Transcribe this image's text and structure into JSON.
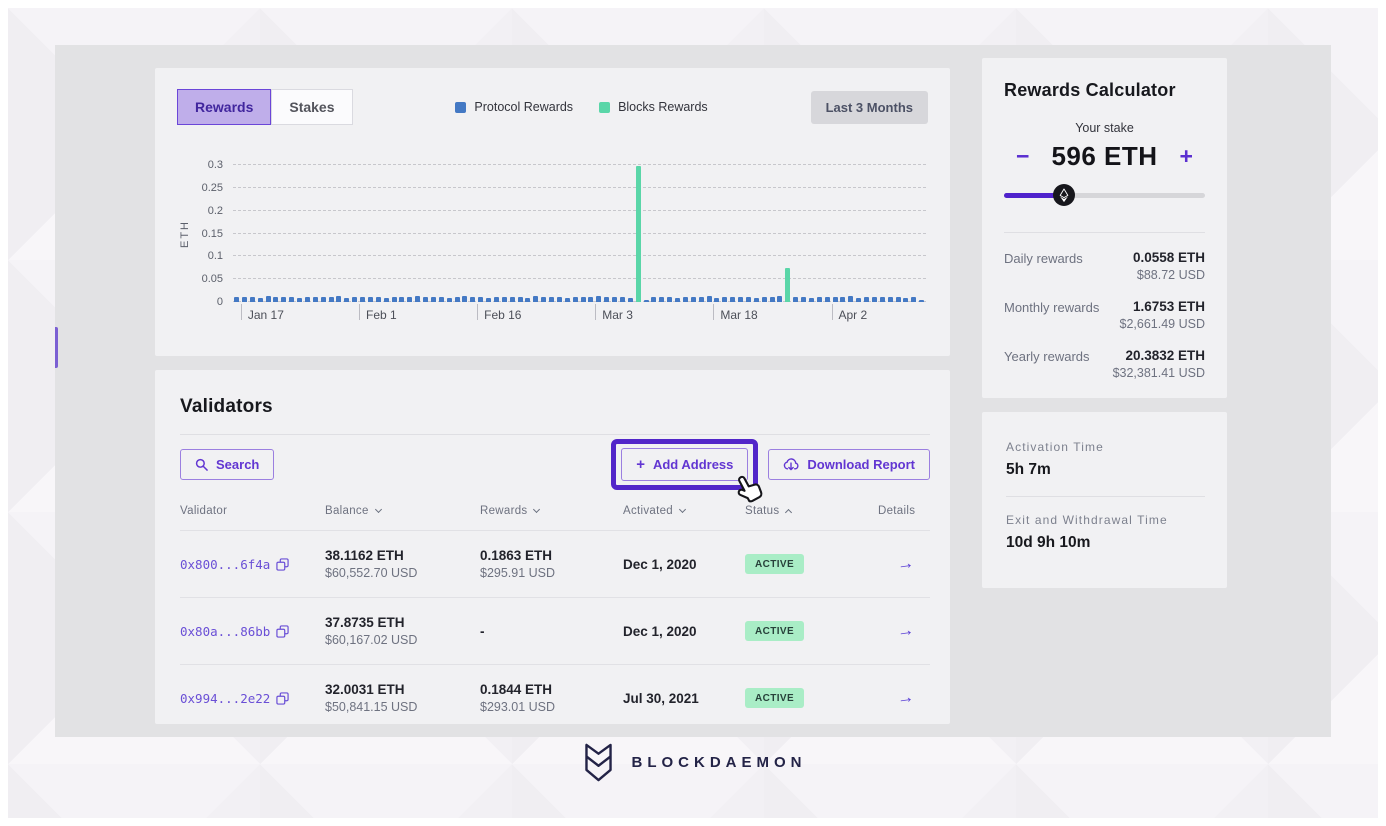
{
  "accent": {
    "purple": "#5b2fd0",
    "purple_light_bg": "#bfaeea",
    "blue": "#4479c4",
    "green": "#5ad6a8",
    "badge_bg": "#a9edc6",
    "canvas": "#e2e2e4",
    "card": "#f1f1f3"
  },
  "chart_panel": {
    "tabs": [
      {
        "label": "Rewards",
        "selected": true
      },
      {
        "label": "Stakes",
        "selected": false
      }
    ],
    "legend": [
      {
        "label": "Protocol Rewards",
        "color": "#4479c4"
      },
      {
        "label": "Blocks Rewards",
        "color": "#5ad6a8"
      }
    ],
    "period_button": "Last 3 Months"
  },
  "chart_data": {
    "type": "bar",
    "ylabel": "ETH",
    "ylim": [
      0,
      0.3
    ],
    "yticks": [
      0,
      0.05,
      0.1,
      0.15,
      0.2,
      0.25,
      0.3
    ],
    "ytick_labels": [
      "0",
      "0.05",
      "0.1",
      "0.15",
      "0.2",
      "0.25",
      "0.3"
    ],
    "grid": "dashed horizontal",
    "legend_position": "top center",
    "xticks": [
      "Jan 17",
      "Feb 1",
      "Feb 16",
      "Mar 3",
      "Mar 18",
      "Apr 2"
    ],
    "xtick_indices": [
      1,
      16,
      31,
      46,
      61,
      76
    ],
    "n_points": 88,
    "series": [
      {
        "name": "Protocol Rewards",
        "color": "#4479c4",
        "values": [
          0.01,
          0.012,
          0.011,
          0.009,
          0.013,
          0.01,
          0.011,
          0.012,
          0.009,
          0.011,
          0.01,
          0.012,
          0.011,
          0.013,
          0.009,
          0.01,
          0.012,
          0.01,
          0.011,
          0.009,
          0.012,
          0.011,
          0.01,
          0.013,
          0.01,
          0.011,
          0.012,
          0.009,
          0.011,
          0.013,
          0.01,
          0.012,
          0.009,
          0.011,
          0.01,
          0.012,
          0.011,
          0.009,
          0.013,
          0.01,
          0.012,
          0.011,
          0.009,
          0.012,
          0.01,
          0.011,
          0.013,
          0.01,
          0.011,
          0.012,
          0.009,
          0.01,
          0.003,
          0.01,
          0.012,
          0.011,
          0.009,
          0.012,
          0.01,
          0.011,
          0.013,
          0.009,
          0.011,
          0.012,
          0.01,
          0.011,
          0.009,
          0.012,
          0.01,
          0.013,
          0.011,
          0.01,
          0.012,
          0.009,
          0.011,
          0.01,
          0.012,
          0.011,
          0.013,
          0.009,
          0.01,
          0.012,
          0.011,
          0.01,
          0.012,
          0.009,
          0.011,
          0.004
        ]
      },
      {
        "name": "Blocks Rewards",
        "color": "#5ad6a8",
        "values_sparse": {
          "51": 0.298,
          "70": 0.074
        }
      }
    ]
  },
  "validators": {
    "title": "Validators",
    "search_label": "Search",
    "add_address_label": "Add Address",
    "download_report_label": "Download Report",
    "columns": [
      {
        "label": "Validator",
        "sort": null
      },
      {
        "label": "Balance",
        "sort": "down"
      },
      {
        "label": "Rewards",
        "sort": "down"
      },
      {
        "label": "Activated",
        "sort": "down"
      },
      {
        "label": "Status",
        "sort": "up"
      },
      {
        "label": "Details",
        "sort": null
      }
    ],
    "rows": [
      {
        "address": "0x800...6f4a",
        "balance_eth": "38.1162 ETH",
        "balance_usd": "$60,552.70 USD",
        "rewards_eth": "0.1863 ETH",
        "rewards_usd": "$295.91 USD",
        "activated": "Dec 1, 2020",
        "status": "ACTIVE"
      },
      {
        "address": "0x80a...86bb",
        "balance_eth": "37.8735 ETH",
        "balance_usd": "$60,167.02 USD",
        "rewards_eth": "-",
        "rewards_usd": "",
        "activated": "Dec 1, 2020",
        "status": "ACTIVE"
      },
      {
        "address": "0x994...2e22",
        "balance_eth": "32.0031 ETH",
        "balance_usd": "$50,841.15 USD",
        "rewards_eth": "0.1844 ETH",
        "rewards_usd": "$293.01 USD",
        "activated": "Jul 30, 2021",
        "status": "ACTIVE"
      }
    ]
  },
  "calculator": {
    "title": "Rewards Calculator",
    "stake_label": "Your stake",
    "stake_value": "596 ETH",
    "minus": "−",
    "plus": "+",
    "slider_percent": 30,
    "rows": [
      {
        "label": "Daily rewards",
        "eth": "0.0558 ETH",
        "usd": "$88.72 USD"
      },
      {
        "label": "Monthly rewards",
        "eth": "1.6753 ETH",
        "usd": "$2,661.49 USD"
      },
      {
        "label": "Yearly rewards",
        "eth": "20.3832 ETH",
        "usd": "$32,381.41 USD"
      }
    ]
  },
  "times": {
    "activation_label": "Activation Time",
    "activation_value": "5h 7m",
    "exit_label": "Exit and Withdrawal Time",
    "exit_value": "10d 9h 10m"
  },
  "footer": {
    "brand": "BLOCKDAEMON"
  }
}
